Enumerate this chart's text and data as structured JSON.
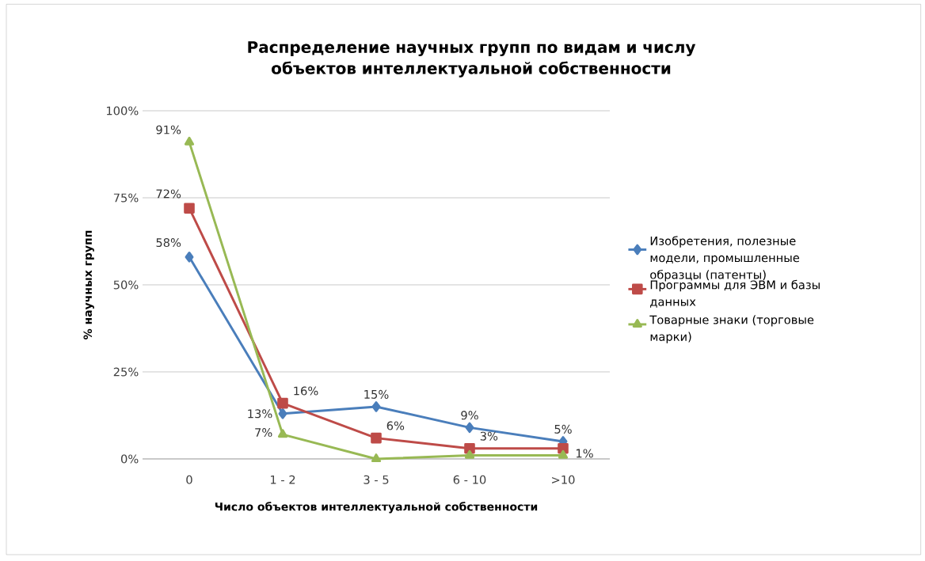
{
  "chart_data": {
    "type": "line",
    "title": "Распределение научных групп по видам и числу объектов интеллектуальной собственности",
    "xlabel": "Число объектов интеллектуальной собственности",
    "ylabel": "% научных групп",
    "categories": [
      "0",
      "1 - 2",
      "3 - 5",
      "6 - 10",
      ">10"
    ],
    "ylim": [
      0,
      100
    ],
    "yticks": [
      {
        "value": 0,
        "label": "0%"
      },
      {
        "value": 25,
        "label": "25%"
      },
      {
        "value": 50,
        "label": "50%"
      },
      {
        "value": 75,
        "label": "75%"
      },
      {
        "value": 100,
        "label": "100%"
      }
    ],
    "grid": "y",
    "legend": "right",
    "series": [
      {
        "name": "Изобретения, полезные модели, промышленные образцы (патенты)",
        "color": "#4a7ebb",
        "marker": "diamond",
        "values": [
          58,
          13,
          15,
          9,
          5
        ],
        "value_labels": [
          "58%",
          "13%",
          "15%",
          "9%",
          "5%"
        ]
      },
      {
        "name": "Программы для ЭВМ и базы данных",
        "color": "#be4b48",
        "marker": "square",
        "values": [
          72,
          16,
          6,
          3,
          3
        ],
        "value_labels": [
          "72%",
          "16%",
          "6%",
          "3%",
          null
        ]
      },
      {
        "name": "Товарные знаки (торговые марки)",
        "color": "#98b954",
        "marker": "triangle",
        "values": [
          91,
          7,
          0,
          1,
          1
        ],
        "value_labels": [
          "91%",
          "7%",
          null,
          null,
          "1%"
        ]
      }
    ]
  }
}
